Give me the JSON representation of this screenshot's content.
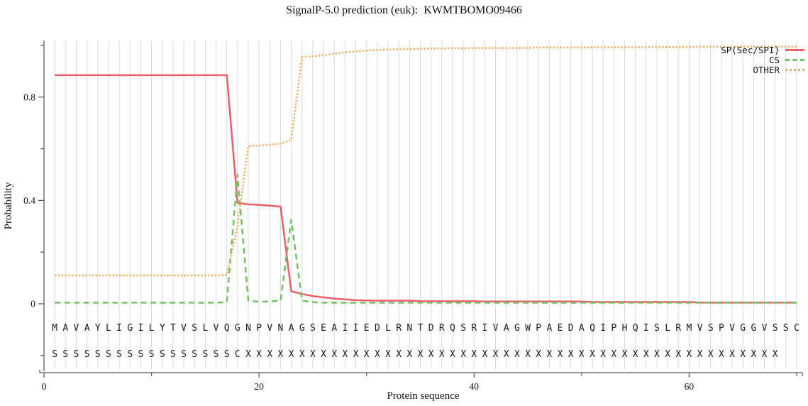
{
  "title": "SignalP-5.0 prediction (euk):  KWMTBOMO09466",
  "x_axis": {
    "label": "Protein sequence",
    "major_ticks": [
      {
        "value": 0,
        "label": "0"
      },
      {
        "value": 20,
        "label": "20"
      },
      {
        "value": 40,
        "label": "40"
      },
      {
        "value": 60,
        "label": "60"
      }
    ],
    "minor_ticks": [
      10,
      30,
      50,
      70
    ]
  },
  "y_axis": {
    "label": "Probability",
    "major_ticks": [
      {
        "value": 0,
        "label": "0"
      },
      {
        "value": 0.4,
        "label": "0.4"
      },
      {
        "value": 0.8,
        "label": "0.8"
      }
    ],
    "minor_ticks": [
      -0.2,
      0.2,
      0.6,
      1.0
    ]
  },
  "legend": [
    {
      "label": "SP(Sec/SPI)",
      "color": "#ef5e67",
      "style": "solid"
    },
    {
      "label": "CS",
      "color": "#74c163",
      "style": "dashed"
    },
    {
      "label": "OTHER",
      "color": "#f3a85c",
      "style": "dotted"
    }
  ],
  "sequence_row": "MAVAYLIGILYTVSLVQGNPVNAGSEAIIEDLRNTDRQSRIVAGWPAEDAQIPHQISLRMVSPVGGVSSC",
  "marker_row": "SSSSSSSSSSSSSSSSSCXXXXXXXXXXXXXXXXXXXXXXXXXXXXXXXXXXXXXXXXXXXXXXXXXX",
  "colors": {
    "grid": "#d9d9d9",
    "axis": "#555555",
    "text": "#111111"
  },
  "chart_data": {
    "type": "line",
    "title": "SignalP-5.0 prediction (euk):  KWMTBOMO09466",
    "xlabel": "Protein sequence",
    "ylabel": "Probability",
    "xlim": [
      0,
      70.5
    ],
    "ylim": [
      -0.27,
      1.02
    ],
    "grid": "vertical line at every residue position",
    "legend_position": "top-right, no box",
    "x_start": 1,
    "x_count": 70,
    "series": [
      {
        "name": "SP(Sec/SPI)",
        "color": "#ef5e67",
        "line_style": "solid",
        "values": [
          0.885,
          0.885,
          0.885,
          0.885,
          0.885,
          0.885,
          0.885,
          0.885,
          0.885,
          0.885,
          0.885,
          0.885,
          0.885,
          0.885,
          0.885,
          0.885,
          0.885,
          0.39,
          0.385,
          0.383,
          0.38,
          0.376,
          0.048,
          0.038,
          0.03,
          0.025,
          0.02,
          0.017,
          0.014,
          0.013,
          0.012,
          0.012,
          0.012,
          0.012,
          0.01,
          0.01,
          0.01,
          0.01,
          0.01,
          0.01,
          0.009,
          0.009,
          0.009,
          0.009,
          0.009,
          0.009,
          0.009,
          0.009,
          0.009,
          0.009,
          0.007,
          0.007,
          0.007,
          0.007,
          0.007,
          0.007,
          0.007,
          0.007,
          0.007,
          0.007,
          0.005,
          0.005,
          0.005,
          0.005,
          0.005,
          0.005,
          0.005,
          0.005,
          0.005,
          0.005
        ]
      },
      {
        "name": "CS",
        "color": "#74c163",
        "line_style": "dashed",
        "values": [
          0.004,
          0.004,
          0.004,
          0.004,
          0.004,
          0.004,
          0.004,
          0.004,
          0.004,
          0.004,
          0.004,
          0.004,
          0.004,
          0.004,
          0.004,
          0.004,
          0.006,
          0.5,
          0.012,
          0.008,
          0.009,
          0.012,
          0.325,
          0.012,
          0.006,
          0.004,
          0.004,
          0.004,
          0.004,
          0.004,
          0.004,
          0.004,
          0.004,
          0.004,
          0.004,
          0.004,
          0.004,
          0.004,
          0.004,
          0.004,
          0.004,
          0.004,
          0.004,
          0.004,
          0.004,
          0.004,
          0.004,
          0.004,
          0.004,
          0.004,
          0.004,
          0.004,
          0.004,
          0.004,
          0.004,
          0.004,
          0.004,
          0.004,
          0.004,
          0.004,
          0.004,
          0.004,
          0.004,
          0.004,
          0.004,
          0.004,
          0.004,
          0.004,
          0.004,
          0.004
        ]
      },
      {
        "name": "OTHER",
        "color": "#f3a85c",
        "line_style": "dotted",
        "values": [
          0.11,
          0.11,
          0.11,
          0.11,
          0.11,
          0.11,
          0.11,
          0.11,
          0.11,
          0.11,
          0.11,
          0.11,
          0.11,
          0.11,
          0.11,
          0.11,
          0.112,
          0.3,
          0.61,
          0.613,
          0.615,
          0.62,
          0.635,
          0.955,
          0.958,
          0.962,
          0.968,
          0.973,
          0.977,
          0.98,
          0.982,
          0.984,
          0.985,
          0.986,
          0.987,
          0.988,
          0.988,
          0.989,
          0.989,
          0.99,
          0.99,
          0.99,
          0.99,
          0.99,
          0.99,
          0.992,
          0.992,
          0.992,
          0.992,
          0.992,
          0.993,
          0.993,
          0.993,
          0.993,
          0.993,
          0.994,
          0.994,
          0.994,
          0.994,
          0.994,
          0.995,
          0.995,
          0.995,
          0.995,
          0.995,
          0.995,
          0.995,
          0.995,
          0.995,
          0.995
        ]
      }
    ],
    "sequence_row": "MAVAYLIGILYTVSLVQGNPVNAGSEAIIEDLRNTDRQSRIVAGWPAEDAQIPHQISLRMVSPVGGVSSC",
    "marker_row": "SSSSSSSSSSSSSSSSSCXXXXXXXXXXXXXXXXXXXXXXXXXXXXXXXXXXXXXXXXXXXXXXXXXX"
  }
}
